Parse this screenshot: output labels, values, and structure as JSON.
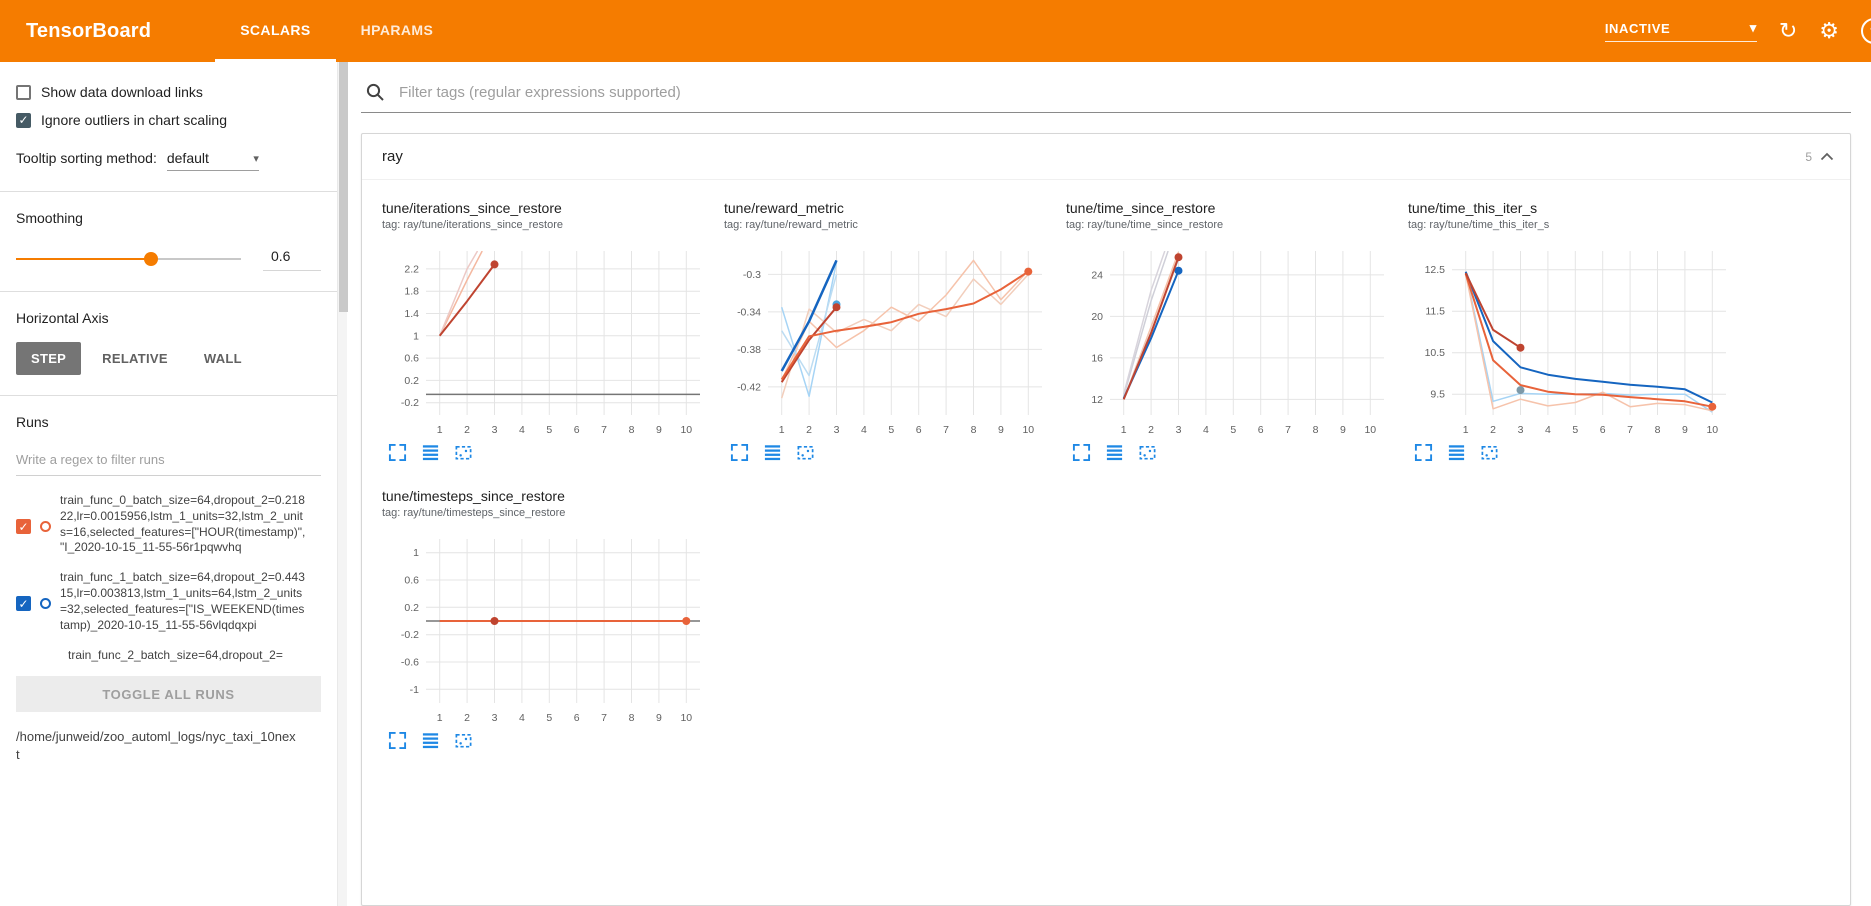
{
  "colors": {
    "header_orange": "#f57c00",
    "toolbar_icon_blue": "#1e88e5",
    "run_orange": "#e8633a",
    "run_blue": "#1565c0",
    "run_red": "#bf4430",
    "checkbox_dark": "#455a64"
  },
  "header": {
    "title": "TensorBoard",
    "tabs": [
      {
        "label": "SCALARS",
        "active": true
      },
      {
        "label": "HPARAMS",
        "active": false
      }
    ],
    "status": "INACTIVE"
  },
  "sidebar": {
    "checkboxes": [
      {
        "label": "Show data download links",
        "checked": false
      },
      {
        "label": "Ignore outliers in chart scaling",
        "checked": true
      }
    ],
    "tooltip_sorting": {
      "label": "Tooltip sorting method:",
      "value": "default"
    },
    "smoothing": {
      "label": "Smoothing",
      "value": "0.6",
      "fraction": 0.6
    },
    "horizontal_axis": {
      "label": "Horizontal Axis",
      "options": [
        "STEP",
        "RELATIVE",
        "WALL"
      ],
      "selected": "STEP"
    },
    "runs": {
      "label": "Runs",
      "filter_placeholder": "Write a regex to filter runs",
      "items": [
        {
          "text": "train_func_0_batch_size=64,dropout_2=0.21822,lr=0.0015956,lstm_1_units=32,lstm_2_units=16,selected_features=[\"HOUR(timestamp)\", \"I_2020-10-15_11-55-56r1pqwvhq",
          "color": "#e8633a",
          "checked": true
        },
        {
          "text": "train_func_1_batch_size=64,dropout_2=0.44315,lr=0.003813,lstm_1_units=64,lstm_2_units=32,selected_features=[\"IS_WEEKEND(timestamp)_2020-10-15_11-55-56vlqdqxpi",
          "color": "#1565c0",
          "checked": true
        },
        {
          "text": "train_func_2_batch_size=64,dropout_2=",
          "color": "",
          "checked": false
        }
      ],
      "toggle_all_label": "TOGGLE ALL RUNS",
      "log_path": "/home/junweid/zoo_automl_logs/nyc_taxi_10next"
    }
  },
  "main": {
    "filter_placeholder": "Filter tags (regular expressions supported)",
    "section": {
      "title": "ray",
      "count": "5"
    }
  },
  "chart_data": [
    {
      "type": "line",
      "title": "tune/iterations_since_restore",
      "subtitle": "tag: ray/tune/iterations_since_restore",
      "xticks": [
        1,
        2,
        3,
        4,
        5,
        6,
        7,
        8,
        9,
        10
      ],
      "xlim": [
        0.5,
        10.5
      ],
      "yticks": [
        -0.2,
        0.2,
        0.6,
        1,
        1.4,
        1.8,
        2.2
      ],
      "ylim": [
        -0.42,
        2.52
      ],
      "series": [
        {
          "name": "raw-orange",
          "color": "#f4b8a0",
          "width": 1.5,
          "points": [
            [
              1,
              1
            ],
            [
              2,
              2
            ],
            [
              2.55,
              2.52
            ]
          ]
        },
        {
          "name": "raw-red",
          "color": "#edc9c5",
          "width": 1.5,
          "points": [
            [
              1,
              1
            ],
            [
              2,
              2.2
            ],
            [
              2.38,
              2.52
            ]
          ]
        },
        {
          "name": "smoothed-red",
          "color": "#bf4430",
          "width": 2,
          "points": [
            [
              1,
              1
            ],
            [
              2,
              1.62
            ],
            [
              3,
              2.28
            ]
          ],
          "end_dot": true
        },
        {
          "name": "flat-gray",
          "color": "#757575",
          "width": 1.5,
          "points": [
            [
              0.5,
              -0.05
            ],
            [
              10.5,
              -0.05
            ]
          ]
        }
      ]
    },
    {
      "type": "line",
      "title": "tune/reward_metric",
      "subtitle": "tag: ray/tune/reward_metric",
      "xticks": [
        1,
        2,
        3,
        4,
        5,
        6,
        7,
        8,
        9,
        10
      ],
      "xlim": [
        0.5,
        10.5
      ],
      "yticks": [
        -0.42,
        -0.38,
        -0.34,
        -0.3
      ],
      "ylim": [
        -0.45,
        -0.275
      ],
      "series": [
        {
          "name": "raw-orange-a",
          "color": "#f6c3ab",
          "width": 1.5,
          "points": [
            [
              1,
              -0.413
            ],
            [
              2,
              -0.35
            ],
            [
              3,
              -0.378
            ],
            [
              4,
              -0.36
            ],
            [
              5,
              -0.335
            ],
            [
              6,
              -0.35
            ],
            [
              7,
              -0.322
            ],
            [
              8,
              -0.285
            ],
            [
              9,
              -0.327
            ],
            [
              10,
              -0.296
            ]
          ]
        },
        {
          "name": "raw-orange-b",
          "color": "#f2cebc",
          "width": 1.5,
          "points": [
            [
              1,
              -0.432
            ],
            [
              2,
              -0.337
            ],
            [
              3,
              -0.362
            ],
            [
              4,
              -0.348
            ],
            [
              5,
              -0.36
            ],
            [
              6,
              -0.332
            ],
            [
              7,
              -0.345
            ],
            [
              8,
              -0.305
            ],
            [
              9,
              -0.332
            ],
            [
              10,
              -0.3
            ]
          ]
        },
        {
          "name": "raw-blue-a",
          "color": "#a6d4f5",
          "width": 1.5,
          "points": [
            [
              1,
              -0.335
            ],
            [
              2,
              -0.43
            ],
            [
              3,
              -0.287
            ]
          ]
        },
        {
          "name": "raw-blue-b",
          "color": "#bcdcf2",
          "width": 1.5,
          "points": [
            [
              1,
              -0.36
            ],
            [
              2,
              -0.408
            ],
            [
              3,
              -0.3
            ]
          ]
        },
        {
          "name": "smoothed-blue",
          "color": "#1565c0",
          "width": 2.5,
          "points": [
            [
              1,
              -0.403
            ],
            [
              2,
              -0.35
            ],
            [
              3,
              -0.285
            ]
          ]
        },
        {
          "name": "point-lightblue",
          "color": "#4ba3dd",
          "points": [
            [
              3,
              -0.332
            ]
          ],
          "end_dot": true
        },
        {
          "name": "smoothed-red",
          "color": "#bf4430",
          "width": 2,
          "points": [
            [
              1,
              -0.415
            ],
            [
              2,
              -0.37
            ],
            [
              3,
              -0.335
            ]
          ],
          "end_dot": true
        },
        {
          "name": "smoothed-orange",
          "color": "#e8633a",
          "width": 2,
          "points": [
            [
              1,
              -0.412
            ],
            [
              2,
              -0.366
            ],
            [
              3,
              -0.36
            ],
            [
              4,
              -0.356
            ],
            [
              5,
              -0.351
            ],
            [
              6,
              -0.342
            ],
            [
              7,
              -0.337
            ],
            [
              8,
              -0.331
            ],
            [
              9,
              -0.316
            ],
            [
              10,
              -0.297
            ]
          ],
          "end_dot": true
        }
      ]
    },
    {
      "type": "line",
      "title": "tune/time_since_restore",
      "subtitle": "tag: ray/tune/time_since_restore",
      "xticks": [
        1,
        2,
        3,
        4,
        5,
        6,
        7,
        8,
        9,
        10
      ],
      "xlim": [
        0.5,
        10.5
      ],
      "yticks": [
        12,
        16,
        20,
        24
      ],
      "ylim": [
        10.5,
        26.3
      ],
      "series": [
        {
          "name": "raw-gray-a",
          "color": "#cfcfd8",
          "width": 1.5,
          "points": [
            [
              1,
              12.3
            ],
            [
              2,
              21.5
            ],
            [
              2.62,
              26.3
            ]
          ]
        },
        {
          "name": "raw-gray-b",
          "color": "#d8d4dc",
          "width": 1.5,
          "points": [
            [
              1,
              12.5
            ],
            [
              2,
              22.5
            ],
            [
              2.5,
              26.3
            ]
          ]
        },
        {
          "name": "raw-orange",
          "color": "#f6c3ab",
          "width": 1.5,
          "points": [
            [
              1,
              12
            ],
            [
              2,
              19
            ],
            [
              3,
              26.2
            ]
          ]
        },
        {
          "name": "raw-blue",
          "color": "#b9d7f2",
          "width": 1.5,
          "points": [
            [
              1,
              12.1
            ],
            [
              2,
              18.5
            ],
            [
              3,
              25.5
            ]
          ]
        },
        {
          "name": "smoothed-blue",
          "color": "#1565c0",
          "width": 2,
          "points": [
            [
              1,
              12.1
            ],
            [
              2,
              17.9
            ],
            [
              3,
              24.4
            ]
          ],
          "end_dot": true
        },
        {
          "name": "smoothed-red",
          "color": "#bf4430",
          "width": 2,
          "points": [
            [
              1,
              12
            ],
            [
              2,
              18.4
            ],
            [
              3,
              25.7
            ]
          ],
          "end_dot": true
        }
      ]
    },
    {
      "type": "line",
      "title": "tune/time_this_iter_s",
      "subtitle": "tag: ray/tune/time_this_iter_s",
      "xticks": [
        1,
        2,
        3,
        4,
        5,
        6,
        7,
        8,
        9,
        10
      ],
      "xlim": [
        0.5,
        10.5
      ],
      "yticks": [
        9.5,
        10.5,
        11.5,
        12.5
      ],
      "ylim": [
        9.0,
        12.95
      ],
      "series": [
        {
          "name": "raw-blue",
          "color": "#a6d4f5",
          "width": 1.5,
          "points": [
            [
              1,
              12.45
            ],
            [
              2,
              9.33
            ],
            [
              3,
              9.52
            ],
            [
              4,
              9.5
            ],
            [
              5,
              9.5
            ],
            [
              6,
              9.52
            ],
            [
              7,
              9.48
            ],
            [
              8,
              9.5
            ],
            [
              9,
              9.5
            ],
            [
              10,
              9.07
            ]
          ]
        },
        {
          "name": "raw-orange",
          "color": "#f6c3ab",
          "width": 1.5,
          "points": [
            [
              1,
              12.4
            ],
            [
              2,
              9.15
            ],
            [
              3,
              9.38
            ],
            [
              4,
              9.22
            ],
            [
              5,
              9.3
            ],
            [
              6,
              9.55
            ],
            [
              7,
              9.2
            ],
            [
              8,
              9.28
            ],
            [
              9,
              9.25
            ],
            [
              10,
              9.1
            ]
          ]
        },
        {
          "name": "smoothed-blue",
          "color": "#1565c0",
          "width": 2,
          "points": [
            [
              1,
              12.45
            ],
            [
              2,
              10.78
            ],
            [
              3,
              10.15
            ],
            [
              4,
              9.97
            ],
            [
              5,
              9.87
            ],
            [
              6,
              9.8
            ],
            [
              7,
              9.73
            ],
            [
              8,
              9.68
            ],
            [
              9,
              9.62
            ],
            [
              10,
              9.3
            ]
          ]
        },
        {
          "name": "smoothed-orange",
          "color": "#e8633a",
          "width": 2,
          "points": [
            [
              1,
              12.4
            ],
            [
              2,
              10.32
            ],
            [
              3,
              9.72
            ],
            [
              4,
              9.56
            ],
            [
              5,
              9.5
            ],
            [
              6,
              9.49
            ],
            [
              7,
              9.43
            ],
            [
              8,
              9.38
            ],
            [
              9,
              9.33
            ],
            [
              10,
              9.2
            ]
          ],
          "end_dot": true
        },
        {
          "name": "smoothed-red",
          "color": "#bf4430",
          "width": 2,
          "points": [
            [
              1,
              12.42
            ],
            [
              2,
              11.05
            ],
            [
              3,
              10.62
            ]
          ],
          "end_dot": true
        },
        {
          "name": "point-slate",
          "color": "#7d99a8",
          "points": [
            [
              3,
              9.6
            ]
          ],
          "end_dot": true
        }
      ]
    },
    {
      "type": "line",
      "title": "tune/timesteps_since_restore",
      "subtitle": "tag: ray/tune/timesteps_since_restore",
      "xticks": [
        1,
        2,
        3,
        4,
        5,
        6,
        7,
        8,
        9,
        10
      ],
      "xlim": [
        0.5,
        10.5
      ],
      "yticks": [
        -1,
        -0.6,
        -0.2,
        0.2,
        0.6,
        1
      ],
      "ylim": [
        -1.2,
        1.2
      ],
      "series": [
        {
          "name": "flat-gray",
          "color": "#757575",
          "width": 1.5,
          "points": [
            [
              0.5,
              0
            ],
            [
              10.5,
              0
            ]
          ]
        },
        {
          "name": "flat-orange",
          "color": "#e8633a",
          "width": 2,
          "points": [
            [
              1,
              0
            ],
            [
              10,
              0
            ]
          ],
          "end_dot": true
        },
        {
          "name": "point-red",
          "color": "#bf4430",
          "points": [
            [
              3,
              0
            ]
          ],
          "end_dot": true
        }
      ]
    }
  ]
}
